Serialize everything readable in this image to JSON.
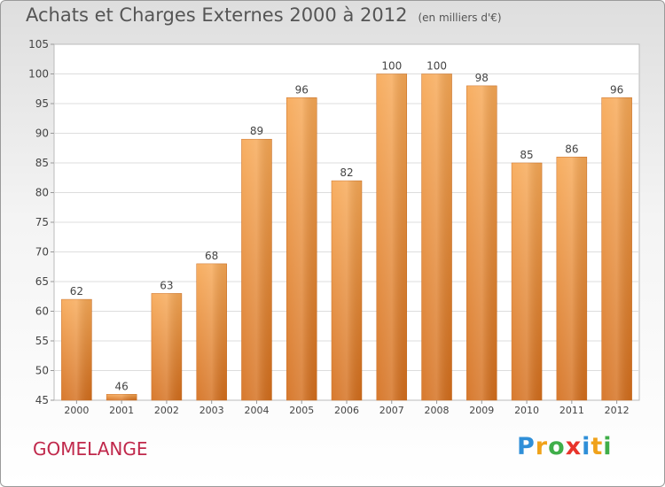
{
  "chart_data": {
    "type": "bar",
    "title": "Achats et Charges Externes 2000 à 2012",
    "subtitle": "(en milliers d'€)",
    "categories": [
      "2000",
      "2001",
      "2002",
      "2003",
      "2004",
      "2005",
      "2006",
      "2007",
      "2008",
      "2009",
      "2010",
      "2011",
      "2012"
    ],
    "values": [
      62,
      46,
      63,
      68,
      89,
      96,
      82,
      100,
      100,
      98,
      85,
      86,
      96
    ],
    "xlabel": "",
    "ylabel": "",
    "ylim": [
      45,
      105
    ],
    "yticks": [
      45,
      50,
      55,
      60,
      65,
      70,
      75,
      80,
      85,
      90,
      95,
      100,
      105
    ],
    "grid": true,
    "colors": {
      "bar_light": "#f7a855",
      "bar_dark": "#d46e1c",
      "label": "#444444"
    }
  },
  "location": "GOMELANGE",
  "logo": {
    "text": "Proxiti",
    "letter_colors": [
      "#2f8fd8",
      "#f0a21a",
      "#3fae49",
      "#e8342b",
      "#2f8fd8",
      "#f0a21a",
      "#3fae49"
    ]
  }
}
